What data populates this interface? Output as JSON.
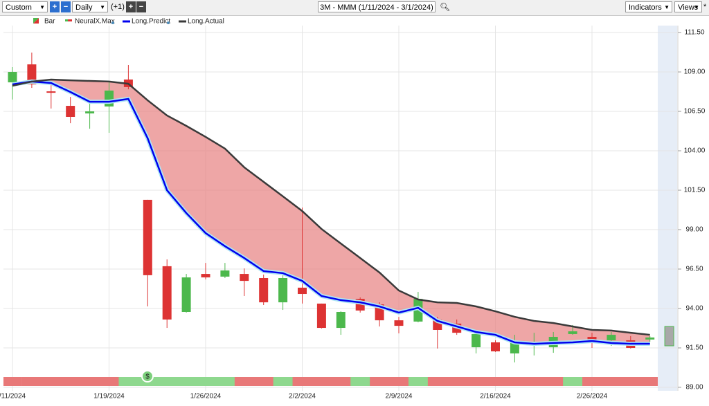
{
  "toolbar": {
    "range": "Custom",
    "interval": "Daily",
    "offset": "(+1)",
    "title": "3M - MMM (1/11/2024 - 3/1/2024)",
    "indicators": "Indicators",
    "views": "Views"
  },
  "chart_data": {
    "type": "candlestick",
    "bar_name": "Bar",
    "up_color": "#4cb84c",
    "down_color": "#dd3333",
    "categories": [
      "/11/2024",
      null,
      null,
      null,
      null,
      "1/19/2024",
      null,
      null,
      null,
      null,
      "1/26/2024",
      null,
      null,
      null,
      null,
      "2/2/2024",
      null,
      null,
      null,
      null,
      "2/9/2024",
      null,
      null,
      null,
      null,
      "2/16/2024",
      null,
      null,
      null,
      null,
      "2/26/2024",
      null,
      null,
      null
    ],
    "open": [
      108.34,
      109.48,
      107.77,
      106.85,
      106.37,
      106.81,
      108.52,
      100.89,
      96.68,
      93.78,
      96.19,
      96.02,
      96.19,
      95.93,
      94.39,
      95.32,
      94.31,
      92.77,
      94.61,
      94.26,
      93.25,
      93.17,
      93.3,
      93.04,
      91.54,
      91.85,
      91.15,
      91.68,
      91.54,
      92.38,
      92.2,
      91.98,
      91.98,
      92.03
    ],
    "high": [
      109.31,
      110.23,
      108.3,
      107.42,
      107.11,
      108.39,
      109.44,
      100.89,
      97.11,
      96.19,
      96.89,
      96.89,
      96.54,
      96.15,
      96.11,
      100.4,
      94.31,
      93.82,
      94.7,
      94.39,
      93.47,
      95.05,
      93.47,
      93.3,
      92.51,
      91.98,
      92.33,
      92.46,
      92.51,
      92.95,
      92.46,
      92.51,
      92.25,
      92.25
    ],
    "low": [
      107.25,
      107.99,
      106.68,
      105.75,
      105.4,
      105.14,
      107.9,
      94.13,
      92.77,
      93.74,
      95.84,
      95.93,
      94.79,
      94.22,
      93.91,
      94.31,
      92.73,
      92.33,
      93.74,
      92.86,
      92.42,
      93.12,
      91.46,
      92.33,
      91.15,
      91.24,
      90.58,
      91.02,
      91.19,
      92.33,
      91.5,
      91.63,
      91.46,
      91.89
    ],
    "close": [
      109.0,
      108.21,
      107.68,
      106.15,
      106.5,
      107.82,
      108.04,
      96.11,
      93.3,
      95.97,
      95.97,
      96.41,
      95.75,
      94.39,
      95.93,
      94.92,
      92.77,
      93.78,
      93.87,
      93.25,
      92.9,
      94.61,
      92.64,
      92.46,
      92.38,
      91.28,
      91.85,
      91.76,
      92.2,
      92.55,
      91.81,
      92.33,
      91.5,
      92.16
    ],
    "forecast": {
      "open": 91.63,
      "close": 92.86,
      "high": 92.86,
      "low": 91.63,
      "color": "#a8a8a8"
    },
    "series": [
      {
        "name": "Long.Predict",
        "color": "#0000ee",
        "values": [
          108.21,
          108.39,
          108.3,
          107.73,
          107.11,
          107.11,
          107.29,
          104.79,
          101.5,
          100.05,
          98.78,
          97.95,
          97.2,
          96.37,
          96.24,
          95.75,
          94.79,
          94.53,
          94.39,
          94.13,
          93.74,
          94.04,
          93.21,
          92.86,
          92.51,
          92.33,
          91.85,
          91.76,
          91.81,
          91.85,
          91.94,
          91.81,
          91.76,
          91.76
        ]
      },
      {
        "name": "Long.Actual",
        "color": "#3a3a3a",
        "values": [
          108.12,
          108.39,
          108.52,
          108.47,
          108.43,
          108.39,
          108.25,
          107.2,
          106.24,
          105.58,
          104.88,
          104.14,
          102.95,
          102.03,
          101.11,
          100.18,
          99.04,
          98.12,
          97.2,
          96.28,
          95.14,
          94.57,
          94.39,
          94.35,
          94.13,
          93.82,
          93.47,
          93.21,
          93.08,
          92.86,
          92.64,
          92.6,
          92.46,
          92.33
        ]
      }
    ],
    "spread_color": "#e88888",
    "strip": {
      "name": "NeuralX.Max",
      "colors": [
        "#e87878",
        "#e87878",
        "#e87878",
        "#e87878",
        "#e87878",
        "#e87878",
        "#8ed88e",
        "#8ed88e",
        "#8ed88e",
        "#8ed88e",
        "#8ed88e",
        "#8ed88e",
        "#e87878",
        "#e87878",
        "#8ed88e",
        "#e87878",
        "#e87878",
        "#e87878",
        "#8ed88e",
        "#e87878",
        "#e87878",
        "#8ed88e",
        "#e87878",
        "#e87878",
        "#e87878",
        "#e87878",
        "#e87878",
        "#e87878",
        "#e87878",
        "#8ed88e",
        "#e87878",
        "#e87878",
        "#e87878",
        "#e87878"
      ]
    },
    "ylim": [
      88.78,
      111.94
    ],
    "yticks": [
      {
        "value": 89,
        "label": "89.00"
      },
      {
        "value": 91.5,
        "label": "91.50"
      },
      {
        "value": 94,
        "label": "94.00"
      },
      {
        "value": 96.5,
        "label": "96.50"
      },
      {
        "value": 99,
        "label": "99.00"
      },
      {
        "value": 101.5,
        "label": "101.50"
      },
      {
        "value": 104,
        "label": "104.00"
      },
      {
        "value": 106.5,
        "label": "106.50"
      },
      {
        "value": 109,
        "label": "109.00"
      },
      {
        "value": 111.5,
        "label": "111.50"
      }
    ],
    "grid": true
  }
}
